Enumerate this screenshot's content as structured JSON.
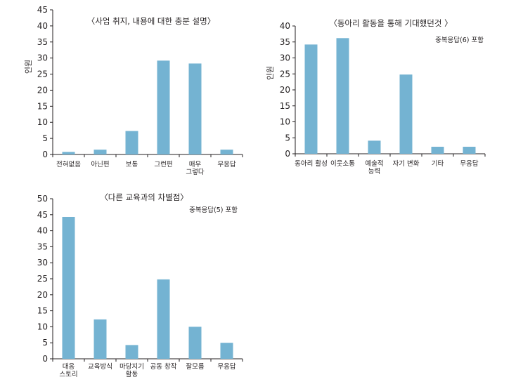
{
  "colors": {
    "bar": "#74b3d2",
    "axis": "#231f20"
  },
  "chart_data": [
    {
      "type": "bar",
      "title": "〈사업 취지, 내용에 대한 충분 설명〉",
      "note": "",
      "ylabel": "인원",
      "ylim": [
        0,
        45
      ],
      "yticks": [
        0,
        5,
        10,
        15,
        20,
        25,
        30,
        35,
        40,
        45
      ],
      "categories": [
        [
          "전혀없음"
        ],
        [
          "아닌편"
        ],
        [
          "보통"
        ],
        [
          "그런편"
        ],
        [
          "매우",
          "그렇다"
        ],
        [
          "무응답"
        ]
      ],
      "values": [
        0.8,
        1.5,
        7.3,
        29.2,
        28.3,
        1.5
      ],
      "grid": false
    },
    {
      "type": "bar",
      "title": "〈동아리 활동을 통해 기대했던것 〉",
      "note": "중복응답(6) 포함",
      "ylabel": "인원",
      "ylim": [
        0,
        40
      ],
      "yticks": [
        0,
        5,
        10,
        15,
        20,
        25,
        30,
        35,
        40
      ],
      "categories": [
        [
          "동아리 활성"
        ],
        [
          "이웃소통"
        ],
        [
          "예술적",
          "능력"
        ],
        [
          "자기 변화"
        ],
        [
          "기타"
        ],
        [
          "무응답"
        ]
      ],
      "values": [
        34.2,
        36.2,
        4.1,
        24.8,
        2.2,
        2.2
      ],
      "grid": false
    },
    {
      "type": "bar",
      "title": "〈다른 교육과의 차별점〉",
      "note": "중복응답(5) 포함",
      "ylabel": "",
      "ylim": [
        0,
        50
      ],
      "yticks": [
        0,
        5,
        10,
        15,
        20,
        25,
        30,
        35,
        40,
        45,
        50
      ],
      "categories": [
        [
          "대응",
          "스토리"
        ],
        [
          "교육방식"
        ],
        [
          "마당지기",
          "활동"
        ],
        [
          "공동 창작"
        ],
        [
          "잘모름"
        ],
        [
          "무응답"
        ]
      ],
      "values": [
        44.3,
        12.3,
        4.3,
        24.8,
        10.0,
        5.0
      ],
      "grid": false
    }
  ]
}
